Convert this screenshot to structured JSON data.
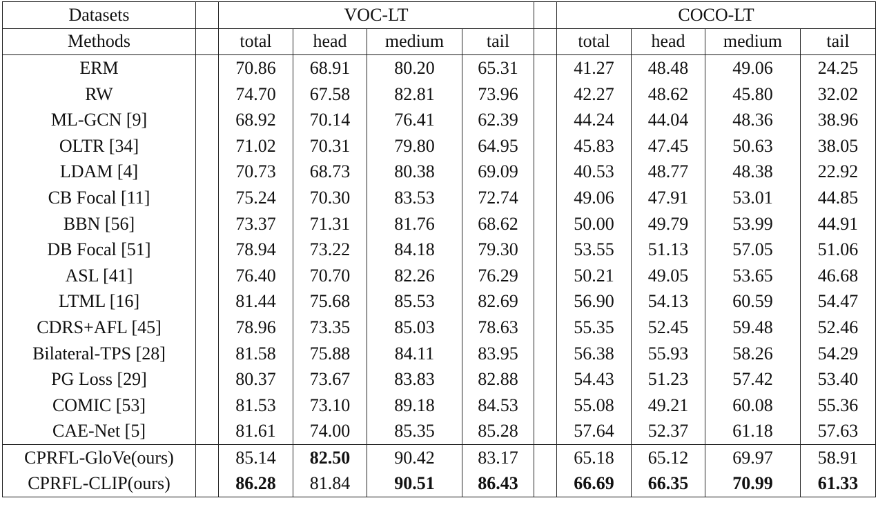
{
  "header": {
    "datasets_label": "Datasets",
    "methods_label": "Methods",
    "voc_title": "VOC-LT",
    "coco_title": "COCO-LT",
    "sub_columns": [
      "total",
      "head",
      "medium",
      "tail"
    ]
  },
  "rows": [
    {
      "method": "ERM",
      "voc": [
        "70.86",
        "68.91",
        "80.20",
        "65.31"
      ],
      "coco": [
        "41.27",
        "48.48",
        "49.06",
        "24.25"
      ]
    },
    {
      "method": "RW",
      "voc": [
        "74.70",
        "67.58",
        "82.81",
        "73.96"
      ],
      "coco": [
        "42.27",
        "48.62",
        "45.80",
        "32.02"
      ]
    },
    {
      "method": "ML-GCN [9]",
      "voc": [
        "68.92",
        "70.14",
        "76.41",
        "62.39"
      ],
      "coco": [
        "44.24",
        "44.04",
        "48.36",
        "38.96"
      ]
    },
    {
      "method": "OLTR [34]",
      "voc": [
        "71.02",
        "70.31",
        "79.80",
        "64.95"
      ],
      "coco": [
        "45.83",
        "47.45",
        "50.63",
        "38.05"
      ]
    },
    {
      "method": "LDAM [4]",
      "voc": [
        "70.73",
        "68.73",
        "80.38",
        "69.09"
      ],
      "coco": [
        "40.53",
        "48.77",
        "48.38",
        "22.92"
      ]
    },
    {
      "method": "CB Focal [11]",
      "voc": [
        "75.24",
        "70.30",
        "83.53",
        "72.74"
      ],
      "coco": [
        "49.06",
        "47.91",
        "53.01",
        "44.85"
      ]
    },
    {
      "method": "BBN [56]",
      "voc": [
        "73.37",
        "71.31",
        "81.76",
        "68.62"
      ],
      "coco": [
        "50.00",
        "49.79",
        "53.99",
        "44.91"
      ]
    },
    {
      "method": "DB Focal [51]",
      "voc": [
        "78.94",
        "73.22",
        "84.18",
        "79.30"
      ],
      "coco": [
        "53.55",
        "51.13",
        "57.05",
        "51.06"
      ]
    },
    {
      "method": "ASL [41]",
      "voc": [
        "76.40",
        "70.70",
        "82.26",
        "76.29"
      ],
      "coco": [
        "50.21",
        "49.05",
        "53.65",
        "46.68"
      ]
    },
    {
      "method": "LTML [16]",
      "voc": [
        "81.44",
        "75.68",
        "85.53",
        "82.69"
      ],
      "coco": [
        "56.90",
        "54.13",
        "60.59",
        "54.47"
      ]
    },
    {
      "method": "CDRS+AFL [45]",
      "voc": [
        "78.96",
        "73.35",
        "85.03",
        "78.63"
      ],
      "coco": [
        "55.35",
        "52.45",
        "59.48",
        "52.46"
      ]
    },
    {
      "method": "Bilateral-TPS [28]",
      "voc": [
        "81.58",
        "75.88",
        "84.11",
        "83.95"
      ],
      "coco": [
        "56.38",
        "55.93",
        "58.26",
        "54.29"
      ]
    },
    {
      "method": "PG Loss [29]",
      "voc": [
        "80.37",
        "73.67",
        "83.83",
        "82.88"
      ],
      "coco": [
        "54.43",
        "51.23",
        "57.42",
        "53.40"
      ]
    },
    {
      "method": "COMIC [53]",
      "voc": [
        "81.53",
        "73.10",
        "89.18",
        "84.53"
      ],
      "coco": [
        "55.08",
        "49.21",
        "60.08",
        "55.36"
      ]
    },
    {
      "method": "CAE-Net [5]",
      "voc": [
        "81.61",
        "74.00",
        "85.35",
        "85.28"
      ],
      "coco": [
        "57.64",
        "52.37",
        "61.18",
        "57.63"
      ]
    }
  ],
  "ours": [
    {
      "method": "CPRFL-GloVe(ours)",
      "voc": [
        "85.14",
        "82.50",
        "90.42",
        "83.17"
      ],
      "coco": [
        "65.18",
        "65.12",
        "69.97",
        "58.91"
      ],
      "voc_bold": [
        false,
        true,
        false,
        false
      ],
      "coco_bold": [
        false,
        false,
        false,
        false
      ]
    },
    {
      "method": "CPRFL-CLIP(ours)",
      "voc": [
        "86.28",
        "81.84",
        "90.51",
        "86.43"
      ],
      "coco": [
        "66.69",
        "66.35",
        "70.99",
        "61.33"
      ],
      "voc_bold": [
        true,
        false,
        true,
        true
      ],
      "coco_bold": [
        true,
        true,
        true,
        true
      ]
    }
  ]
}
